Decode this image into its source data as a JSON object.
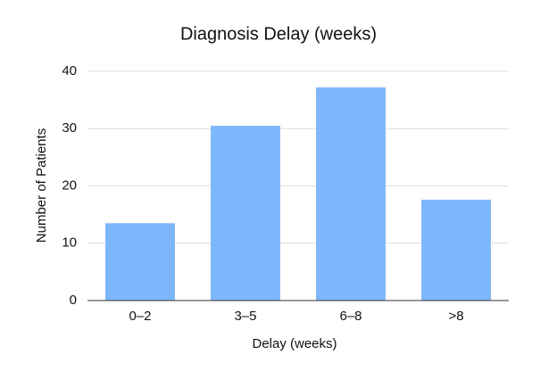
{
  "chart_data": {
    "type": "bar",
    "title": "Diagnosis Delay (weeks)",
    "x_label": "Delay (weeks)",
    "y_label": "Number of Patients",
    "categories": [
      "0–2",
      "3–5",
      "6–8",
      ">8"
    ],
    "values": [
      13.5,
      30.5,
      37.2,
      17.6
    ],
    "color": "#7db6fa",
    "ylim": [
      0,
      40
    ],
    "yticks": [
      0,
      10,
      20,
      30,
      40
    ],
    "grid": true
  }
}
